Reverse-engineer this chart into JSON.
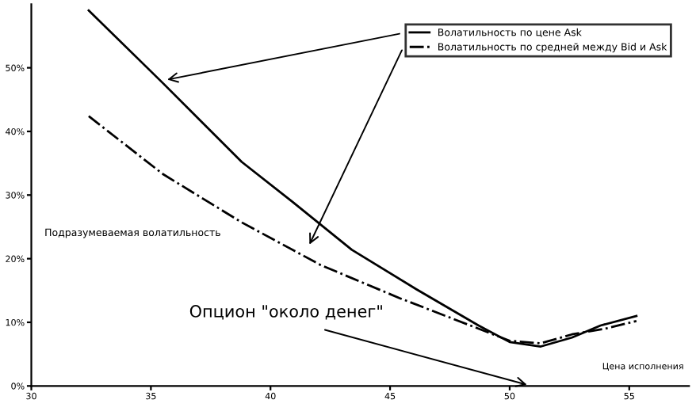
{
  "chart_data": {
    "type": "line",
    "xlabel": "Цена исполнения",
    "ylabel": "Подразумеваемая волатильность",
    "annotations": [
      "Опцион \"около денег\""
    ],
    "xlim": [
      30,
      57.5
    ],
    "xticks": [
      30,
      35,
      40,
      45,
      50,
      55
    ],
    "ylim": [
      0,
      60
    ],
    "yticks": [
      {
        "value": 0,
        "label": "0%"
      },
      {
        "value": 10,
        "label": "10%"
      },
      {
        "value": 20,
        "label": "20%"
      },
      {
        "value": 30,
        "label": "30%"
      },
      {
        "value": 40,
        "label": "40%"
      },
      {
        "value": 50,
        "label": "50%"
      }
    ],
    "grid": false,
    "legend": "top right",
    "marker": "none",
    "series": [
      {
        "name": "Волатильность по цене Ask",
        "color": "#000000",
        "line_style": "solid",
        "x": [
          32.4,
          35.5,
          38.8,
          40.9,
          43.4,
          46.1,
          48.7,
          50.0,
          51.3,
          52.6,
          53.8,
          55.3
        ],
        "values": [
          59.0,
          47.6,
          35.2,
          29.0,
          21.4,
          15.2,
          9.5,
          6.9,
          6.2,
          7.6,
          9.5,
          11.0
        ]
      },
      {
        "name": "Волатильность по средней между Bid и Ask",
        "color": "#000000",
        "line_style": "dashdot",
        "x": [
          32.4,
          35.5,
          38.8,
          42.1,
          45.4,
          48.7,
          50.0,
          51.3,
          52.6,
          54.0,
          55.3
        ],
        "values": [
          42.4,
          33.3,
          25.7,
          19.0,
          13.8,
          9.0,
          7.1,
          6.7,
          8.1,
          9.0,
          10.2
        ]
      }
    ]
  }
}
